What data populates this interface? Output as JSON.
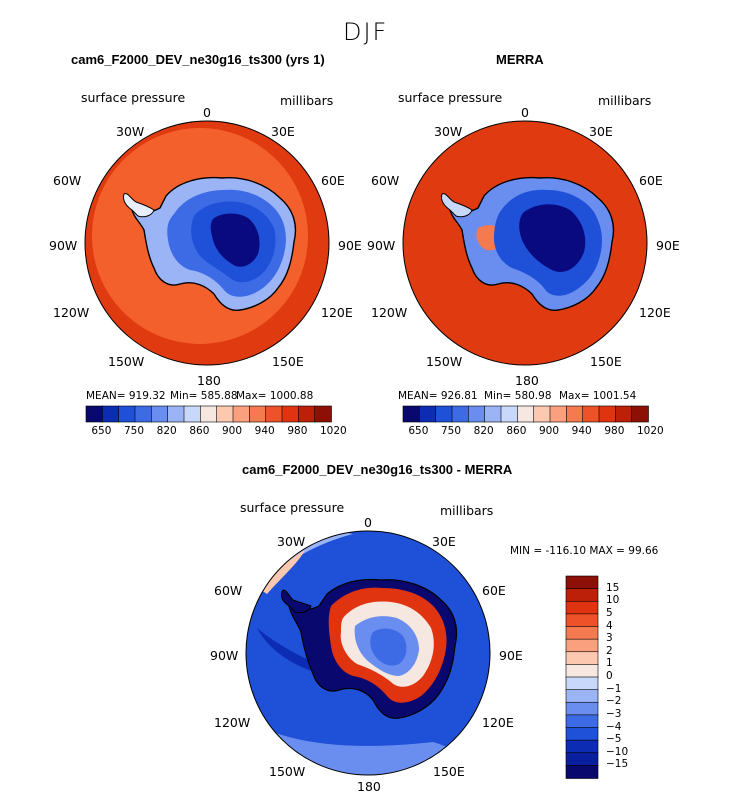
{
  "figure": {
    "title": "DJF"
  },
  "panels": [
    {
      "title": "cam6_F2000_DEV_ne30g16_ts300 (yrs 1)",
      "left_label": "surface pressure",
      "right_label": "millibars",
      "stats": {
        "mean": "MEAN= 919.32",
        "min": "Min= 585.88",
        "max": "Max= 1000.88"
      },
      "colorbar_ticks": [
        "650",
        "750",
        "820",
        "860",
        "900",
        "940",
        "980",
        "1020"
      ],
      "colorbar_colors": [
        "#08086e",
        "#0c2cb4",
        "#1e50d8",
        "#3d6be6",
        "#6a8ef0",
        "#9ab4f6",
        "#c8d8fa",
        "#f6e8e0",
        "#fcc8b0",
        "#faa07e",
        "#f57a50",
        "#ee5228",
        "#e03410",
        "#bc2008",
        "#8c1006"
      ]
    },
    {
      "title": "MERRA",
      "left_label": "surface pressure",
      "right_label": "millibars",
      "stats": {
        "mean": "MEAN= 926.81",
        "min": "Min= 580.98",
        "max": "Max= 1001.54"
      },
      "colorbar_ticks": [
        "650",
        "750",
        "820",
        "860",
        "900",
        "940",
        "980",
        "1020"
      ],
      "colorbar_colors": [
        "#08086e",
        "#0c2cb4",
        "#1e50d8",
        "#3d6be6",
        "#6a8ef0",
        "#9ab4f6",
        "#c8d8fa",
        "#f6e8e0",
        "#fcc8b0",
        "#faa07e",
        "#f57a50",
        "#ee5228",
        "#e03410",
        "#bc2008",
        "#8c1006"
      ]
    },
    {
      "title": "cam6_F2000_DEV_ne30g16_ts300 - MERRA",
      "left_label": "surface pressure",
      "right_label": "millibars",
      "minmax": "MIN = -116.10  MAX =   99.66",
      "colorbar_ticks": [
        "15",
        "10",
        "5",
        "4",
        "3",
        "2",
        "1",
        "0",
        "−1",
        "−2",
        "−3",
        "−4",
        "−5",
        "−10",
        "−15"
      ],
      "colorbar_colors": [
        "#8c1006",
        "#bc2008",
        "#e03410",
        "#ee5228",
        "#f57a50",
        "#faa07e",
        "#fcc8b0",
        "#f6e8e0",
        "#c8d8fa",
        "#9ab4f6",
        "#6a8ef0",
        "#3d6be6",
        "#1e50d8",
        "#0c2cb4",
        "#0a1ea0",
        "#08086e"
      ]
    }
  ],
  "longitude_labels": {
    "lon0": "0",
    "lon30e": "30E",
    "lon60e": "60E",
    "lon90e": "90E",
    "lon120e": "120E",
    "lon150e": "150E",
    "lon180": "180",
    "lon150w": "150W",
    "lon120w": "120W",
    "lon90w": "90W",
    "lon60w": "60W",
    "lon30w": "30W"
  },
  "colors": {
    "ocean_high": "#e03a10",
    "ring_orange": "#f4602c",
    "land_deep": "#0a0a80",
    "diff_ocean": "#1e50d8"
  }
}
